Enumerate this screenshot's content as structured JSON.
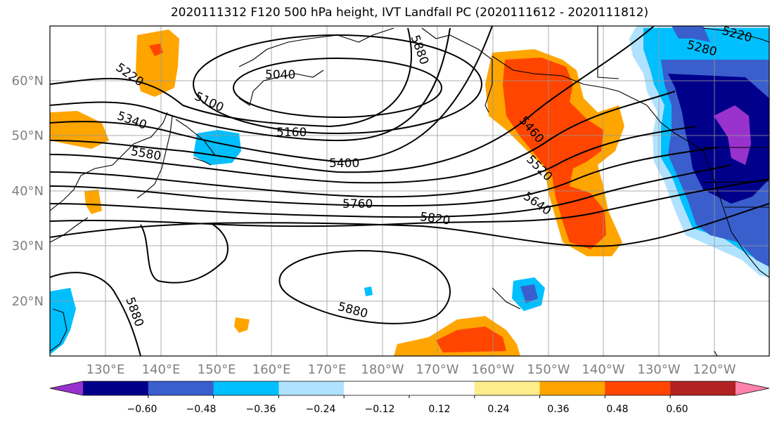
{
  "title": "2020111312 F120 500 hPa height, IVT Landfall PC (2020111612 - 2020111812)",
  "map": {
    "lon_labels": [
      "130°E",
      "140°E",
      "150°E",
      "160°E",
      "170°E",
      "180°W",
      "170°W",
      "160°W",
      "150°W",
      "140°W",
      "130°W",
      "120°W"
    ],
    "lat_labels": [
      "60°N",
      "50°N",
      "40°N",
      "30°N",
      "20°N"
    ],
    "gridlines": true,
    "coastlines": true
  },
  "contours": {
    "variable": "500 hPa height",
    "labels": [
      "5040",
      "5100",
      "5160",
      "5220",
      "5280",
      "5340",
      "5400",
      "5460",
      "5520",
      "5580",
      "5640",
      "5760",
      "5820",
      "5880",
      "5880",
      "5880",
      "5220"
    ]
  },
  "colorbar": {
    "colors": [
      "#9932CC",
      "#00008B",
      "#3A5FCD",
      "#00BFFF",
      "#B0E2FF",
      "#FFFFFF",
      "#FFFFFF",
      "#FFEC8B",
      "#FFA500",
      "#FF4500",
      "#B22222",
      "#FF82AB"
    ],
    "tick_labels": [
      "−0.60",
      "−0.48",
      "−0.36",
      "−0.24",
      "−0.12",
      "0.12",
      "0.24",
      "0.36",
      "0.48",
      "0.60"
    ],
    "extend": "both"
  }
}
